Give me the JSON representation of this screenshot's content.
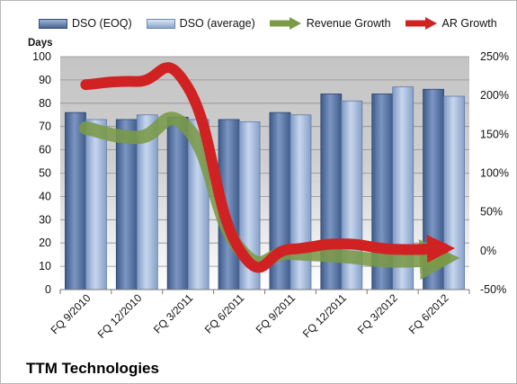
{
  "chart_data": {
    "type": "bar",
    "company": "TTM Technologies",
    "ylabel": "Days",
    "categories": [
      "FQ 9/2010",
      "FQ 12/2010",
      "FQ 3/2011",
      "FQ 6/2011",
      "FQ 9/2011",
      "FQ 12/2011",
      "FQ 3/2012",
      "FQ 6/2012"
    ],
    "ylim": [
      0,
      100
    ],
    "yticks": [
      "0",
      "10",
      "20",
      "30",
      "40",
      "50",
      "60",
      "70",
      "80",
      "90",
      "100"
    ],
    "y2lim": [
      -50,
      250
    ],
    "y2ticks": [
      "-50%",
      "0%",
      "50%",
      "100%",
      "150%",
      "200%",
      "250%"
    ],
    "grid": true,
    "legend_position": "top",
    "series": [
      {
        "name": "DSO (EOQ)",
        "kind": "bar",
        "values": [
          76,
          73,
          74,
          73,
          76,
          84,
          84,
          86
        ]
      },
      {
        "name": "DSO (average)",
        "kind": "bar",
        "values": [
          73,
          75,
          73,
          72,
          75,
          81,
          87,
          83
        ]
      },
      {
        "name": "Revenue Growth",
        "kind": "line-right-axis",
        "values": [
          158,
          146,
          157,
          3,
          -3,
          -7,
          -13,
          -10
        ]
      },
      {
        "name": "AR Growth",
        "kind": "line-right-axis",
        "values": [
          214,
          218,
          210,
          2,
          2,
          9,
          2,
          3
        ]
      }
    ],
    "colors": {
      "eoq_bar": "#5b77a5",
      "avg_bar": "#a7bde0",
      "revenue": "#7a9a48",
      "ar": "#d02222",
      "plot_bg": "#c8c8c8"
    }
  }
}
